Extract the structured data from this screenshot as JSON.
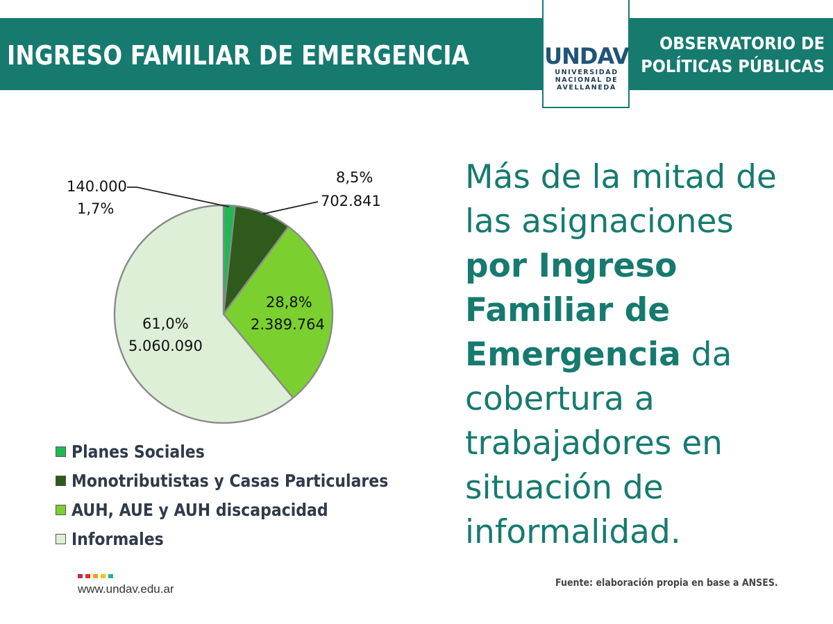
{
  "header": {
    "title": "INGRESO FAMILIAR DE EMERGENCIA",
    "right_line1": "OBSERVATORIO DE",
    "right_line2": "POLÍTICAS PÚBLICAS",
    "color": "#167a6f"
  },
  "logo": {
    "wordmark": "UNDAV",
    "sub1": "UNIVERSIDAD",
    "sub2": "NACIONAL DE",
    "sub3": "AVELLANEDA"
  },
  "chart_data": {
    "type": "pie",
    "slices": [
      {
        "name": "Planes Sociales",
        "value": 140000,
        "percent": 1.7,
        "value_label": "140.000",
        "percent_label": "1,7%",
        "color": "#1db954"
      },
      {
        "name": "Monotributistas y Casas Particulares",
        "value": 702841,
        "percent": 8.5,
        "value_label": "702.841",
        "percent_label": "8,5%",
        "color": "#2e5a1c"
      },
      {
        "name": "AUH, AUE y AUH discapacidad",
        "value": 2389764,
        "percent": 28.8,
        "value_label": "2.389.764",
        "percent_label": "28,8%",
        "color": "#7bd02f"
      },
      {
        "name": "Informales",
        "value": 5060090,
        "percent": 61.0,
        "value_label": "5.060.090",
        "percent_label": "61,0%",
        "color": "#deefd8"
      }
    ],
    "legend_position": "bottom"
  },
  "headline": {
    "l1": "Más de la mitad de",
    "l2": "las asignaciones",
    "l3": "por Ingreso",
    "l4": "Familiar de",
    "l5_bold": "Emergencia",
    "l5_rest": " da",
    "l6": "cobertura a",
    "l7": "trabajadores en",
    "l8": "situación de",
    "l9": "informalidad."
  },
  "footer": {
    "url": "www.undav.edu.ar",
    "source": "Fuente: elaboración propia en base a ANSES.",
    "dot_colors": [
      "#c0265c",
      "#e6282e",
      "#f39c12",
      "#f1c40f",
      "#27ae9c"
    ]
  }
}
